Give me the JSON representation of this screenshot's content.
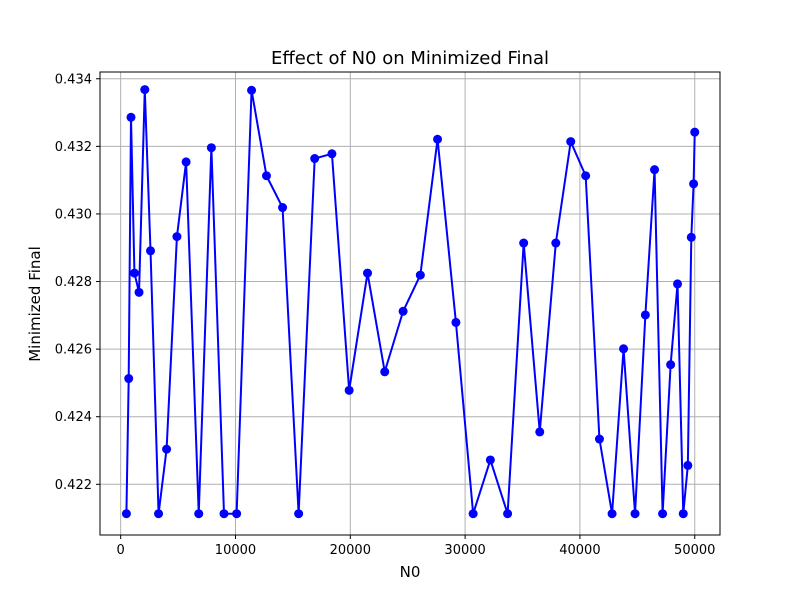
{
  "chart_data": {
    "type": "line",
    "title": "Effect of N0 on Minimized Final",
    "xlabel": "N0",
    "ylabel": "Minimized Final",
    "xlim": [
      -1800,
      52200
    ],
    "ylim": [
      0.4205,
      0.4342
    ],
    "xticks": [
      0,
      10000,
      20000,
      30000,
      40000,
      50000
    ],
    "xtick_labels": [
      "0",
      "10000",
      "20000",
      "30000",
      "40000",
      "50000"
    ],
    "yticks": [
      0.422,
      0.424,
      0.426,
      0.428,
      0.43,
      0.432,
      0.434
    ],
    "ytick_labels": [
      "0.422",
      "0.424",
      "0.426",
      "0.428",
      "0.430",
      "0.432",
      "0.434"
    ],
    "grid": true,
    "color": "#0000ff",
    "marker": "circle",
    "series": [
      {
        "name": "Minimized Final",
        "x": [
          500,
          700,
          900,
          1200,
          1600,
          2100,
          2600,
          3300,
          4000,
          4900,
          5700,
          6800,
          7900,
          9000,
          10100,
          11400,
          12700,
          14100,
          15500,
          16900,
          18400,
          19900,
          21500,
          23000,
          24600,
          26100,
          27600,
          29200,
          30700,
          32200,
          33700,
          35100,
          36500,
          37900,
          39200,
          40500,
          41700,
          42800,
          43800,
          44800,
          45700,
          46500,
          47200,
          47900,
          48500,
          49000,
          49400,
          49700,
          49900,
          50000
        ],
        "y": [
          0.42113,
          0.42513,
          0.43286,
          0.42825,
          0.42768,
          0.43368,
          0.42891,
          0.42113,
          0.42304,
          0.42933,
          0.43154,
          0.42113,
          0.43196,
          0.42113,
          0.42113,
          0.43366,
          0.43113,
          0.43019,
          0.42113,
          0.43164,
          0.43178,
          0.42478,
          0.42825,
          0.42533,
          0.42712,
          0.42819,
          0.43221,
          0.42679,
          0.42113,
          0.42272,
          0.42113,
          0.42914,
          0.42355,
          0.42914,
          0.43214,
          0.43113,
          0.42334,
          0.42113,
          0.42601,
          0.42113,
          0.42701,
          0.43131,
          0.42113,
          0.42554,
          0.42793,
          0.42113,
          0.42256,
          0.42931,
          0.43089,
          0.43242
        ]
      }
    ]
  }
}
